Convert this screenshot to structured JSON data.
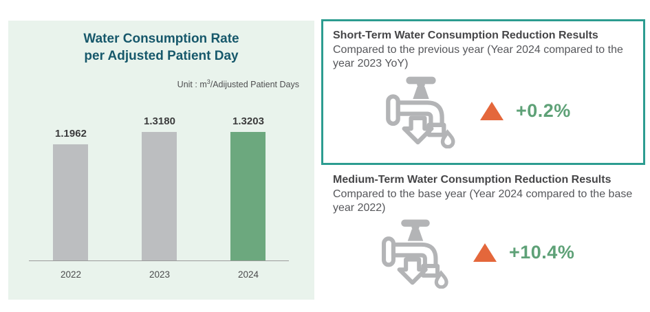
{
  "chart_data": {
    "type": "bar",
    "title": "Water Consumption Rate per Adjusted Patient Day",
    "title_line1": "Water Consumption Rate",
    "title_line2": "per Adjusted Patient Day",
    "unit_prefix": "Unit : m",
    "unit_sup": "3",
    "unit_suffix": "/Adijusted Patient Days",
    "categories": [
      "2022",
      "2023",
      "2024"
    ],
    "values": [
      1.1962,
      1.318,
      1.3203
    ],
    "value_labels": [
      "1.1962",
      "1.3180",
      "1.3203"
    ],
    "bar_colors": [
      "#bcbec0",
      "#bcbec0",
      "#6ca87e"
    ],
    "ylim": [
      0,
      1.3203
    ],
    "grid": false,
    "legend": false
  },
  "cards": {
    "short_term": {
      "title": "Short-Term Water Consumption Reduction Results",
      "subtitle": "Compared to the previous year (Year 2024 compared to the year 2023 YoY)",
      "delta": "+0.2%"
    },
    "medium_term": {
      "title": "Medium-Term Water Consumption Reduction Results",
      "subtitle": "Compared to the base year (Year 2024 compared to the base year 2022)",
      "delta": "+10.4%"
    }
  },
  "colors": {
    "panel_bg": "#e9f3ec",
    "title_teal": "#17586b",
    "bar_gray": "#bcbec0",
    "bar_green": "#6ca87e",
    "box_border": "#2c9c90",
    "triangle_orange": "#e4673b",
    "delta_green": "#5ea177",
    "icon_gray": "#b3b4b6"
  }
}
